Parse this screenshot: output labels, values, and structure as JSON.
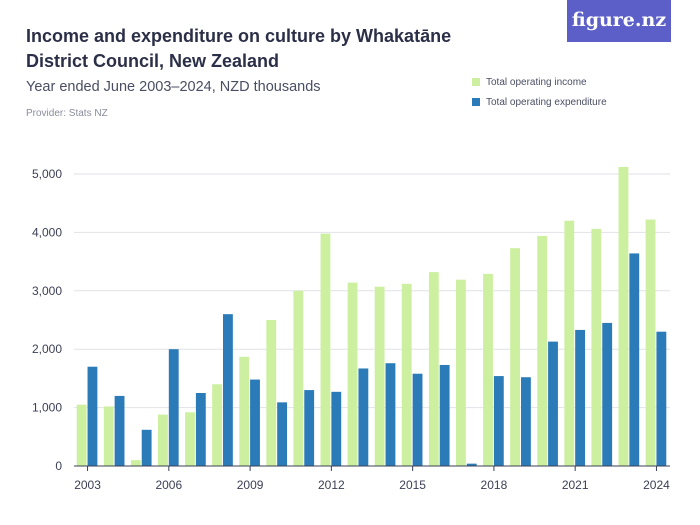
{
  "header": {
    "title": "Income and expenditure on culture by Whakatāne District Council, New Zealand",
    "subtitle": "Year ended June 2003–2024, NZD thousands",
    "provider": "Provider: Stats NZ",
    "logo": "figure.nz"
  },
  "colors": {
    "income": "#cdf0a0",
    "expenditure": "#2a7bb8",
    "grid": "#e1e2e8",
    "axis": "#3b3f55",
    "logo_bg": "#5b5fc7"
  },
  "chart_data": {
    "type": "bar",
    "title": "Income and expenditure on culture by Whakatāne District Council, New Zealand",
    "subtitle": "Year ended June 2003–2024, NZD thousands",
    "xlabel": "",
    "ylabel": "",
    "ylim": [
      0,
      5000
    ],
    "yticks": [
      0,
      1000,
      2000,
      3000,
      4000,
      5000
    ],
    "ytick_labels": [
      "0",
      "1,000",
      "2,000",
      "3,000",
      "4,000",
      "5,000"
    ],
    "categories": [
      "2003",
      "2004",
      "2005",
      "2006",
      "2007",
      "2008",
      "2009",
      "2010",
      "2011",
      "2012",
      "2013",
      "2014",
      "2015",
      "2016",
      "2017",
      "2018",
      "2019",
      "2020",
      "2021",
      "2022",
      "2023",
      "2024"
    ],
    "xtick_labels": [
      "2003",
      "2006",
      "2009",
      "2012",
      "2015",
      "2018",
      "2021",
      "2024"
    ],
    "legend_position": "top-right",
    "series": [
      {
        "name": "Total operating income",
        "values": [
          1050,
          1020,
          100,
          880,
          920,
          1400,
          1870,
          2500,
          3000,
          3980,
          3140,
          3070,
          3120,
          3320,
          3190,
          3290,
          3730,
          3940,
          4200,
          4060,
          5120,
          4220
        ]
      },
      {
        "name": "Total operating expenditure",
        "values": [
          1700,
          1200,
          620,
          2000,
          1250,
          2600,
          1480,
          1090,
          1300,
          1270,
          1670,
          1760,
          1580,
          1730,
          40,
          1540,
          1520,
          2130,
          2330,
          2450,
          3640,
          2300
        ]
      }
    ]
  }
}
